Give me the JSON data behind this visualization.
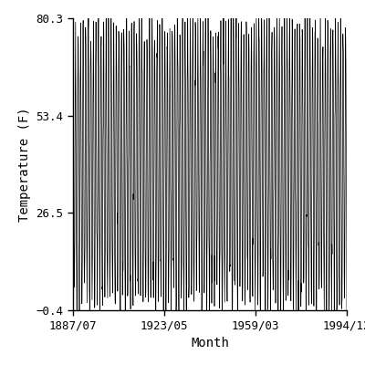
{
  "title": "",
  "xlabel": "Month",
  "ylabel": "Temperature (F)",
  "xlim_start_year": 1887,
  "xlim_start_month": 7,
  "xlim_end_year": 1994,
  "xlim_end_month": 12,
  "ylim": [
    -0.4,
    80.3
  ],
  "yticks": [
    -0.4,
    26.5,
    53.4,
    80.3
  ],
  "xtick_labels": [
    "1887/07",
    "1923/05",
    "1959/03",
    "1994/12"
  ],
  "xtick_years": [
    1887,
    1923,
    1959,
    1994
  ],
  "xtick_months": [
    7,
    5,
    3,
    12
  ],
  "line_color": "#000000",
  "line_width": 0.5,
  "bg_color": "#ffffff",
  "mean_temp": 40.0,
  "amplitude": 38.0,
  "noise_scale": 5.0,
  "figsize": [
    4.0,
    4.0
  ],
  "dpi": 100
}
